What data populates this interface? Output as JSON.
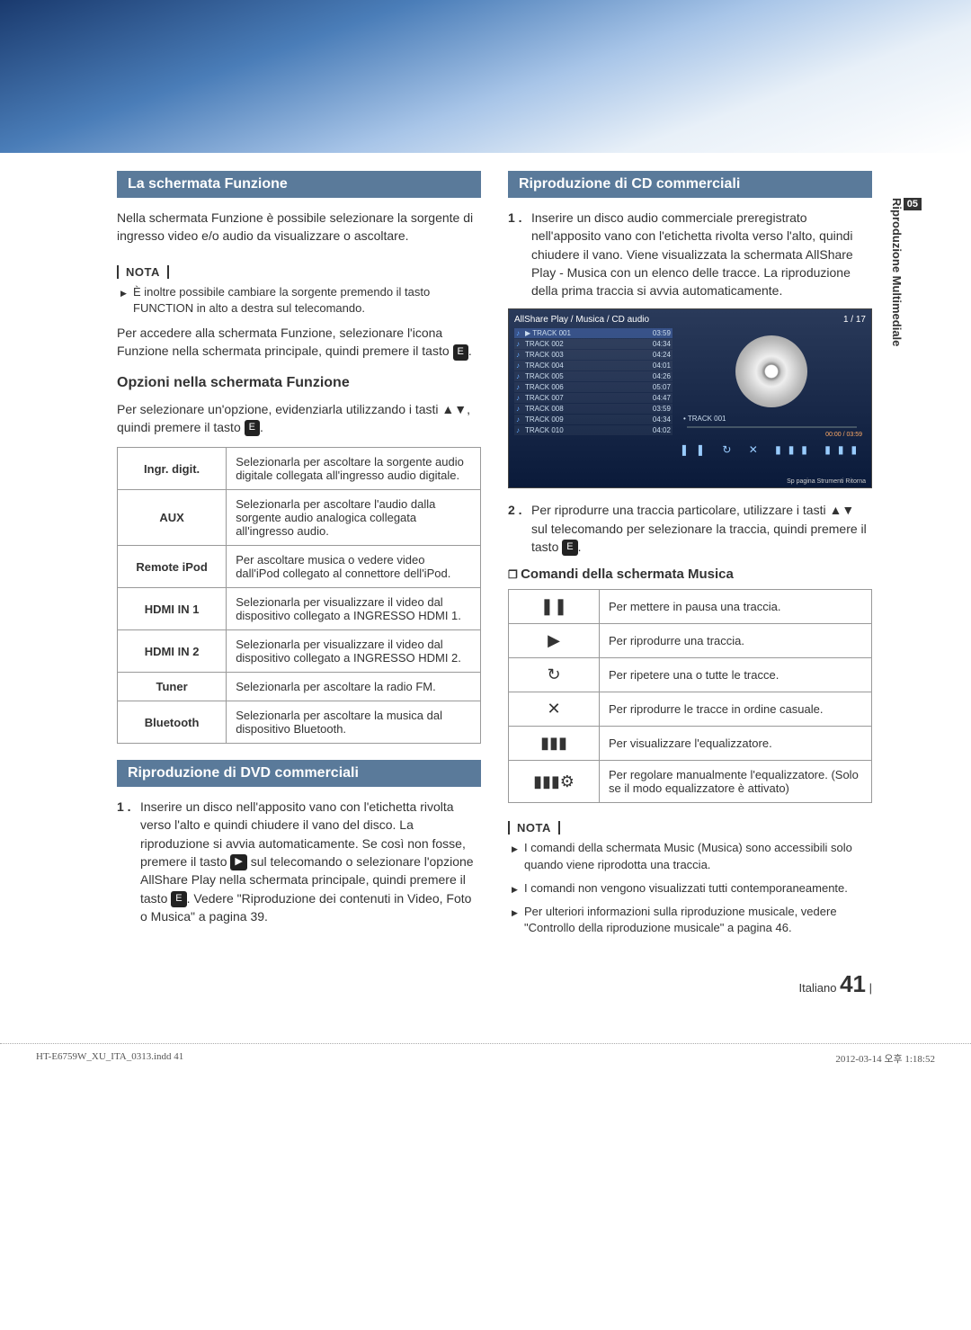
{
  "side": {
    "chapter_num": "05",
    "chapter_title": "Riproduzione Multimediale"
  },
  "left": {
    "bar1": "La schermata Funzione",
    "p1": "Nella schermata Funzione è possibile selezionare la sorgente di ingresso video e/o audio da visualizzare o ascoltare.",
    "nota": "NOTA",
    "note1": "È inoltre possibile cambiare la sorgente premendo il tasto FUNCTION in alto a destra sul telecomando.",
    "p2a": "Per accedere alla schermata Funzione, selezionare l'icona Funzione nella schermata principale, quindi premere il tasto ",
    "p2b": ".",
    "sub1": "Opzioni nella schermata Funzione",
    "p3a": "Per selezionare un'opzione, evidenziarla utilizzando i tasti ▲▼, quindi premere il tasto ",
    "p3b": ".",
    "options": [
      {
        "k": "Ingr. digit.",
        "v": "Selezionarla per ascoltare la sorgente audio digitale collegata all'ingresso audio digitale."
      },
      {
        "k": "AUX",
        "v": "Selezionarla per ascoltare l'audio dalla sorgente audio analogica collegata all'ingresso audio."
      },
      {
        "k": "Remote iPod",
        "v": "Per ascoltare musica o vedere video dall'iPod collegato al connettore dell'iPod."
      },
      {
        "k": "HDMI IN 1",
        "v": "Selezionarla per visualizzare il video dal dispositivo collegato a INGRESSO HDMI 1."
      },
      {
        "k": "HDMI IN 2",
        "v": "Selezionarla per visualizzare il video dal dispositivo collegato a INGRESSO HDMI 2."
      },
      {
        "k": "Tuner",
        "v": "Selezionarla per ascoltare la radio FM."
      },
      {
        "k": "Bluetooth",
        "v": "Selezionarla per ascoltare la musica dal dispositivo Bluetooth."
      }
    ],
    "bar2": "Riproduzione di DVD commerciali",
    "step_dvd_a": "Inserire un disco nell'apposito vano con l'etichetta rivolta verso l'alto e quindi chiudere il vano del disco. La riproduzione si avvia automaticamente. Se così non fosse, premere il tasto ",
    "step_dvd_b": " sul telecomando o selezionare l'opzione AllShare Play nella schermata principale, quindi premere il tasto ",
    "step_dvd_c": ". Vedere \"Riproduzione dei contenuti in Video, Foto o Musica\" a pagina 39."
  },
  "right": {
    "bar1": "Riproduzione di CD commerciali",
    "step1": "Inserire un disco audio commerciale preregistrato nell'apposito vano con l'etichetta rivolta verso l'alto, quindi chiudere il vano. Viene visualizzata la schermata AllShare Play - Musica con un elenco delle tracce. La riproduzione della prima traccia si avvia automaticamente.",
    "ss": {
      "header": "AllShare Play / Musica /     CD audio",
      "counter": "1 / 17",
      "tracks": [
        {
          "n": "TRACK 001",
          "t": "03:59"
        },
        {
          "n": "TRACK 002",
          "t": "04:34"
        },
        {
          "n": "TRACK 003",
          "t": "04:24"
        },
        {
          "n": "TRACK 004",
          "t": "04:01"
        },
        {
          "n": "TRACK 005",
          "t": "04:26"
        },
        {
          "n": "TRACK 006",
          "t": "05:07"
        },
        {
          "n": "TRACK 007",
          "t": "04:47"
        },
        {
          "n": "TRACK 008",
          "t": "03:59"
        },
        {
          "n": "TRACK 009",
          "t": "04:34"
        },
        {
          "n": "TRACK 010",
          "t": "04:02"
        }
      ],
      "now": "• TRACK 001",
      "time": "00:00 / 03:59",
      "footer": "Sp pagina   Strumenti   Ritorna"
    },
    "step2a": "Per riprodurre una traccia particolare, utilizzare i tasti ▲▼ sul telecomando per selezionare la traccia, quindi premere il tasto ",
    "step2b": ".",
    "sub1": "Comandi della schermata Musica",
    "controls": [
      {
        "icon": "❚❚",
        "v": "Per mettere in pausa una traccia."
      },
      {
        "icon": "▶",
        "v": "Per riprodurre una traccia."
      },
      {
        "icon": "↻",
        "v": "Per ripetere una o tutte le tracce."
      },
      {
        "icon": "✕",
        "v": "Per riprodurre le tracce in ordine casuale."
      },
      {
        "icon": "▮▮▮",
        "v": "Per visualizzare l'equalizzatore."
      },
      {
        "icon": "▮▮▮⚙",
        "v": "Per regolare manualmente l'equalizzatore. (Solo se il modo equalizzatore è attivato)"
      }
    ],
    "nota": "NOTA",
    "notes": [
      "I comandi della schermata Music (Musica) sono accessibili solo quando viene riprodotta una traccia.",
      "I comandi non vengono visualizzati tutti contemporaneamente.",
      "Per ulteriori informazioni sulla riproduzione musicale, vedere \"Controllo della riproduzione musicale\" a pagina 46."
    ]
  },
  "footer": {
    "lang": "Italiano",
    "page": "41",
    "bar": "|"
  },
  "print": {
    "file": "HT-E6759W_XU_ITA_0313.indd   41",
    "date": "2012-03-14   오후 1:18:52"
  }
}
